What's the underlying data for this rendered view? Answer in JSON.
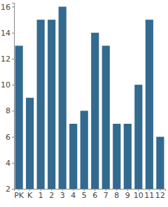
{
  "chart_data": {
    "type": "bar",
    "categories": [
      "PK",
      "K",
      "1",
      "2",
      "3",
      "4",
      "5",
      "6",
      "7",
      "8",
      "9",
      "10",
      "11",
      "12"
    ],
    "values": [
      13,
      9,
      15,
      15,
      16,
      7,
      8,
      14,
      13,
      7,
      7,
      10,
      15,
      6
    ],
    "color": "#336a90",
    "ylim": [
      2,
      16.3
    ],
    "yticks": [
      2,
      4,
      6,
      8,
      10,
      12,
      14,
      16
    ],
    "grid": false
  }
}
